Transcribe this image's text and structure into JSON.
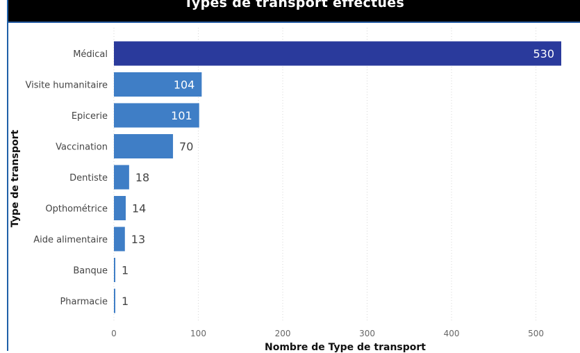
{
  "chart_data": {
    "type": "bar",
    "orientation": "horizontal",
    "title": "Types de transport effectués",
    "xlabel": "Nombre de Type de transport",
    "ylabel": "Type de transport",
    "categories": [
      "Médical",
      "Visite humanitaire",
      "Epicerie",
      "Vaccination",
      "Dentiste",
      "Opthométrice",
      "Aide alimentaire",
      "Banque",
      "Pharmacie"
    ],
    "values": [
      530,
      104,
      101,
      70,
      18,
      14,
      13,
      1,
      1
    ],
    "xlim": [
      0,
      530
    ],
    "xticks": [
      0,
      100,
      200,
      300,
      400,
      500
    ],
    "grid": "vertical dotted",
    "colors": {
      "highlight_bar": "#2a3a9c",
      "bar": "#3f7ec6",
      "grid": "#d6d6d6"
    }
  }
}
